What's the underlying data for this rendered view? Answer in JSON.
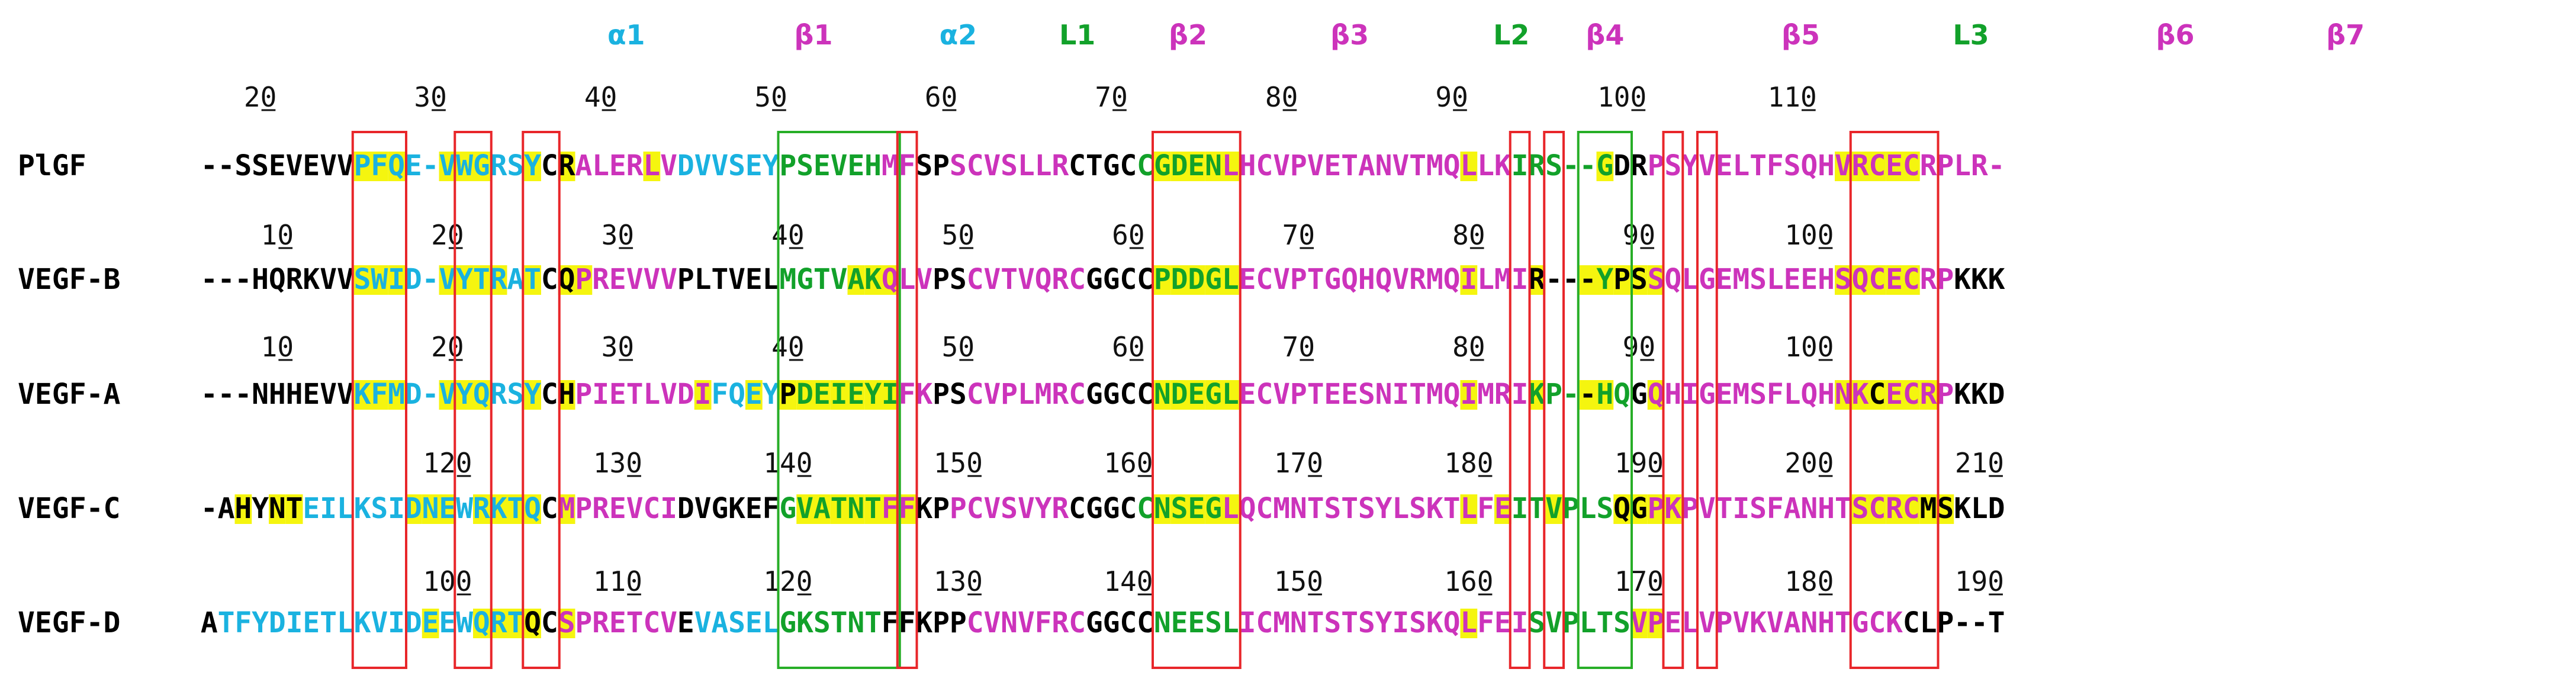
{
  "colors": {
    "helix": "#1ab2e0",
    "strand": "#cc33bb",
    "loop": "#12a12a",
    "plain": "#000000",
    "highlight": "#f5f50f",
    "red_box": "#e8262a",
    "green_box": "#27ae27"
  },
  "ss_labels": [
    {
      "text": "α1",
      "type": "helix",
      "at_col": 24.5
    },
    {
      "text": "β1",
      "type": "strand",
      "at_col": 35.5
    },
    {
      "text": "α2",
      "type": "helix",
      "at_col": 44
    },
    {
      "text": "L1",
      "type": "loop",
      "at_col": 51
    },
    {
      "text": "β2",
      "type": "strand",
      "at_col": 57.5
    },
    {
      "text": "β3",
      "type": "strand",
      "at_col": 67
    },
    {
      "text": "L2",
      "type": "loop",
      "at_col": 76.5
    },
    {
      "text": "β4",
      "type": "strand",
      "at_col": 82
    },
    {
      "text": "β5",
      "type": "strand",
      "at_col": 93.5
    },
    {
      "text": "L3",
      "type": "loop",
      "at_col": 103.5
    },
    {
      "text": "β6",
      "type": "strand",
      "at_col": 115.5
    },
    {
      "text": "β7",
      "type": "strand",
      "at_col": 125.5
    }
  ],
  "sequences": [
    {
      "name": "PlGF",
      "seq": "--SSEVEVVPFQE-VWGRSYCRALERLVDVVSEYPSEVEHMFSPSCVSLLRCTGCCGDENLHCVPVETANVTMQLLKIRS--GDRPSYVELTFSQHVRCECRPLR-",
      "ss": "--KKKKKKKHHHHHHHHHHHKKSSSSSSHHHHHHLLLLLLSSKKSSSSSSSKKKKLLLLLSSSSSSSSSSSSSSSSSLLLLLLKKSSSSSSSSSSSSSSSSSSSS-",
      "hl": ".........YYY..YY..Y.Y......................................YYYYY.YY............................................................................................................................................................................................YY.YYY...............................",
      "ticks": [
        {
          "col": 3,
          "label": "20"
        },
        {
          "col": 13,
          "label": "30"
        },
        {
          "col": 23,
          "label": "40"
        },
        {
          "col": 33,
          "label": "50"
        },
        {
          "col": 43,
          "label": "60"
        },
        {
          "col": 53,
          "label": "70"
        },
        {
          "col": 63,
          "label": "80"
        },
        {
          "col": 73,
          "label": "90"
        },
        {
          "col": 83,
          "label": "100"
        },
        {
          "col": 93,
          "label": "110"
        }
      ]
    },
    {
      "name": "VEGF-B",
      "seq": "---HQRKVVSWID-VYTRATCQPREVVVPLTVELMGTVAKQLVPSCVTVQRCGGCCPDDGLECVPTGQHQVRMQILMIR---YPSSQLGEMSLEEHSQCECRPKKK",
      "ss": "---KKKKKKHHHHHHHHHHHKKSSSSSSKKKKKKLLLLLLSSSKKSSSSSSSKKKKLLLLLSSSSSSSSSSSSSSSSS---LLKKSSSSSSSSSSSSSSSSSSKKK",
      "hl": "",
      "ticks": [
        {
          "col": 4,
          "label": "10"
        },
        {
          "col": 14,
          "label": "20"
        },
        {
          "col": 24,
          "label": "30"
        },
        {
          "col": 34,
          "label": "40"
        },
        {
          "col": 44,
          "label": "50"
        },
        {
          "col": 54,
          "label": "60"
        },
        {
          "col": 64,
          "label": "70"
        },
        {
          "col": 74,
          "label": "80"
        },
        {
          "col": 84,
          "label": "90"
        },
        {
          "col": 94,
          "label": "100"
        }
      ]
    },
    {
      "name": "VEGF-A",
      "seq": "---NHHEVVKFMD-VYQRSYCHPIETLVDIFQEYPDEIEYIFKPSCVPLMRCGGCCNDEGLECVPTEESNITMQIMRIKP--HQGQHIGEMSFLQHNKCECRPKKD",
      "ss": "---KKKKKKHHHHHHHHHHHKKSSSSSSSSHHHHKLLLLLLSSKKSSSSSSSKKKKLLLLLSSSSSSSSSSSSSSSSSLL--LLKSSSSSSSSSSSSSKSSSSKKK",
      "hl": "",
      "ticks": [
        {
          "col": 4,
          "label": "10"
        },
        {
          "col": 14,
          "label": "20"
        },
        {
          "col": 24,
          "label": "30"
        },
        {
          "col": 34,
          "label": "40"
        },
        {
          "col": 44,
          "label": "50"
        },
        {
          "col": 54,
          "label": "60"
        },
        {
          "col": 64,
          "label": "70"
        },
        {
          "col": 74,
          "label": "80"
        },
        {
          "col": 84,
          "label": "90"
        },
        {
          "col": 94,
          "label": "100"
        }
      ]
    },
    {
      "name": "VEGF-C",
      "seq": "-AHYNTEILKSIDNEWRKTQCMPREVCIDVGKEFGVATNTFFKPPCVSVYRCGGCCNSEGLQCMNTSTSYLSKTLFEITVPLSQGPKPVTISFANHTSCRCMSKLD",
      "ss": "-KKKKKHHHHHHHHHHHHHHKSSSSSSSKKKKKKLLLLLLSSKKSSSSSSSKKKKLLLLLSSSSSSSSSSSSSSSSSLLLLLLKKSSSSSSSSSSSSSSSSKKKK",
      "hl": "",
      "ticks": [
        {
          "col": 14,
          "label": "120"
        },
        {
          "col": 24,
          "label": "130"
        },
        {
          "col": 34,
          "label": "140"
        },
        {
          "col": 44,
          "label": "150"
        },
        {
          "col": 54,
          "label": "160"
        },
        {
          "col": 64,
          "label": "170"
        },
        {
          "col": 74,
          "label": "180"
        },
        {
          "col": 84,
          "label": "190"
        },
        {
          "col": 94,
          "label": "200"
        },
        {
          "col": 104,
          "label": "210"
        }
      ]
    },
    {
      "name": "VEGF-D",
      "seq": "ATFYDIETLKVIDEEWQRTQCSPRETCVEVASELGKSTNTFFKPPCVNVFRCGGCCNEESLICMNTSTSYISKQLFEISVPLTSVPELVPVKVANHTGCKCLP--T",
      "ss": "KHHHHHHHHHHHHHHHHHHKKSSSSSSSKHHHHHLLLLLLKKKKKSSSSSSSKKKKLLLLLSSSSSSSSSSSSSSSSSLLLLLLSSSSSSSSSSSSSSSSKKKK--K",
      "hl": "",
      "ticks": [
        {
          "col": 14,
          "label": "100"
        },
        {
          "col": 24,
          "label": "110"
        },
        {
          "col": 34,
          "label": "120"
        },
        {
          "col": 44,
          "label": "130"
        },
        {
          "col": 54,
          "label": "140"
        },
        {
          "col": 64,
          "label": "150"
        },
        {
          "col": 74,
          "label": "160"
        },
        {
          "col": 84,
          "label": "170"
        },
        {
          "col": 94,
          "label": "180"
        },
        {
          "col": 104,
          "label": "190"
        }
      ]
    }
  ],
  "highlights": [
    [
      9,
      10,
      11,
      14,
      15,
      16,
      19,
      21,
      26,
      56,
      57,
      58,
      59,
      60,
      74,
      82,
      96,
      97,
      98,
      99,
      100
    ],
    [
      9,
      10,
      11,
      14,
      15,
      16,
      17,
      19,
      21,
      22,
      38,
      39,
      40,
      56,
      57,
      58,
      59,
      60,
      74,
      78,
      81,
      82,
      83,
      84,
      85,
      96,
      97,
      98,
      99,
      100
    ],
    [
      9,
      10,
      11,
      14,
      15,
      16,
      19,
      21,
      29,
      32,
      34,
      35,
      36,
      37,
      38,
      39,
      40,
      56,
      57,
      58,
      59,
      60,
      74,
      78,
      81,
      82,
      85,
      96,
      97,
      98,
      99,
      100,
      101
    ],
    [
      2,
      4,
      5,
      12,
      13,
      14,
      16,
      17,
      18,
      19,
      21,
      35,
      36,
      37,
      38,
      39,
      40,
      41,
      56,
      57,
      58,
      59,
      60,
      74,
      76,
      79,
      83,
      84,
      85,
      86,
      97,
      98,
      99,
      100,
      101,
      102
    ],
    [
      13,
      16,
      17,
      18,
      19,
      21,
      74,
      84,
      85
    ]
  ],
  "boxes": [
    {
      "kind": "red",
      "from": 9,
      "to": 11
    },
    {
      "kind": "red",
      "from": 15,
      "to": 16
    },
    {
      "kind": "red",
      "from": 19,
      "to": 20
    },
    {
      "kind": "green",
      "from": 34,
      "to": 40
    },
    {
      "kind": "red",
      "from": 41,
      "to": 41
    },
    {
      "kind": "red",
      "from": 56,
      "to": 60
    },
    {
      "kind": "red",
      "from": 77,
      "to": 77
    },
    {
      "kind": "red",
      "from": 79,
      "to": 79
    },
    {
      "kind": "green",
      "from": 81,
      "to": 83
    },
    {
      "kind": "red",
      "from": 86,
      "to": 86
    },
    {
      "kind": "red",
      "from": 88,
      "to": 88
    },
    {
      "kind": "red",
      "from": 97,
      "to": 101
    }
  ]
}
